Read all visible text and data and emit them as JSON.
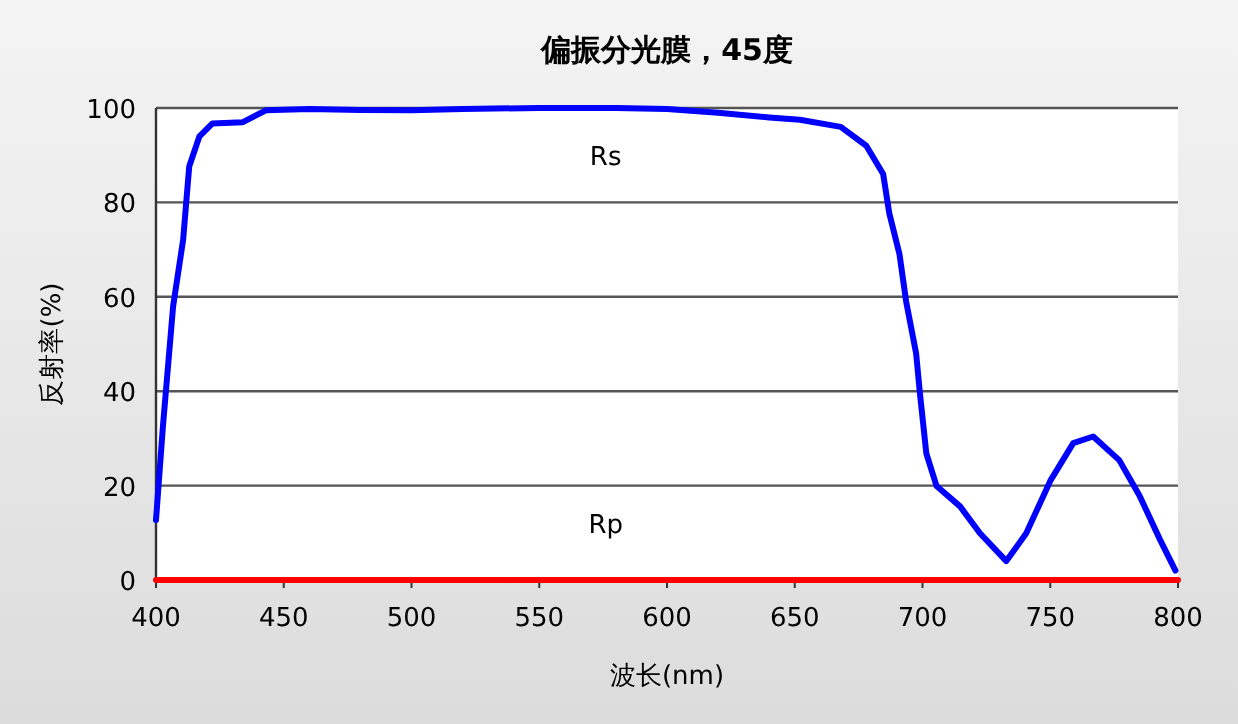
{
  "chart_data": {
    "type": "line",
    "title": "偏振分光膜，45度",
    "xlabel": "波长(nm)",
    "ylabel": "反射率(%)",
    "xlim": [
      400,
      800
    ],
    "xticks": [
      400,
      450,
      500,
      550,
      600,
      650,
      700,
      750,
      800
    ],
    "ylim": [
      0,
      100
    ],
    "yticks": [
      0,
      20,
      40,
      60,
      80,
      100
    ],
    "grid": "y",
    "legend": false,
    "marker": "none",
    "line_style": "solid",
    "series": [
      {
        "name": "Rs",
        "color": "#0000ff",
        "x": [
          400,
          402.7,
          406.7,
          410.6,
          413,
          417,
          422,
          434,
          443,
          460,
          480,
          500,
          520,
          550,
          580,
          600,
          620,
          640,
          652,
          668,
          678,
          684.6,
          687,
          691,
          693.6,
          697.5,
          699,
          701.5,
          705.5,
          714.7,
          722.5,
          732.8,
          740.6,
          750,
          759,
          766.8,
          777,
          785,
          793,
          799
        ],
        "values": [
          12.7,
          32.5,
          58,
          72,
          87.6,
          94,
          96.7,
          97,
          99.5,
          99.8,
          99.6,
          99.5,
          99.8,
          100,
          100,
          99.8,
          99,
          98,
          97.5,
          96,
          92,
          86,
          77.7,
          69,
          59,
          48,
          39.5,
          26.8,
          19.9,
          15.6,
          9.9,
          4,
          9.9,
          21,
          29,
          30.4,
          25.4,
          17.8,
          8.5,
          2
        ]
      },
      {
        "name": "Rp",
        "color": "#ff0000",
        "x": [
          400,
          800
        ],
        "values": [
          0,
          0
        ]
      }
    ]
  }
}
